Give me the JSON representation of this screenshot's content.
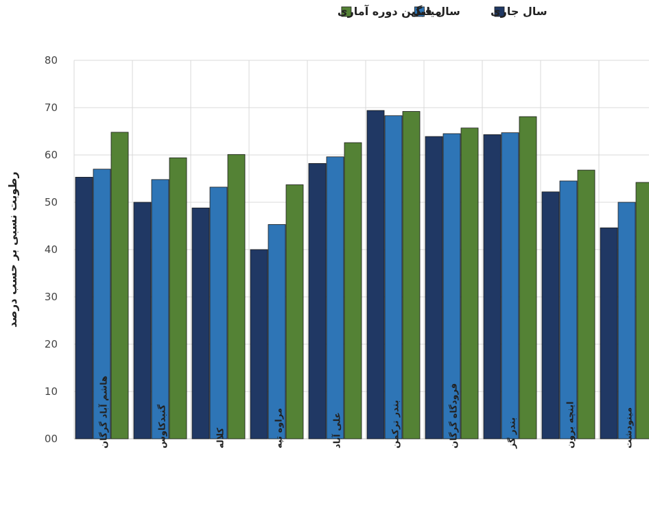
{
  "chart_data": {
    "type": "bar",
    "ylabel": "رطوبت نسبی بر حسب درصد",
    "ylim": [
      0,
      80
    ],
    "yticks": [
      "00",
      "10",
      "20",
      "30",
      "40",
      "50",
      "60",
      "70",
      "80"
    ],
    "grid": true,
    "legend_position": "top",
    "categories": [
      "هاشم آباد گرگان",
      "گنبدکاوس",
      "کلاله",
      "مراوه تپه",
      "علی آباد",
      "بندر ترکمن",
      "فرودگاه گرگان",
      "بندر گز",
      "اینچه برون",
      "مینودشت"
    ],
    "series": [
      {
        "name": "سال جاری",
        "color": "#203864",
        "values": [
          55.3,
          50.0,
          48.8,
          40.0,
          58.2,
          69.4,
          63.9,
          64.3,
          52.2,
          44.6
        ]
      },
      {
        "name": "سال قبل",
        "color": "#2E75B6",
        "values": [
          57.0,
          54.8,
          53.2,
          45.3,
          59.6,
          68.3,
          64.5,
          64.7,
          54.5,
          50.0
        ]
      },
      {
        "name": "میانگین دوره آماری",
        "color": "#548235",
        "values": [
          64.8,
          59.4,
          60.1,
          53.7,
          62.6,
          69.2,
          65.7,
          68.1,
          56.8,
          54.2
        ]
      }
    ]
  }
}
